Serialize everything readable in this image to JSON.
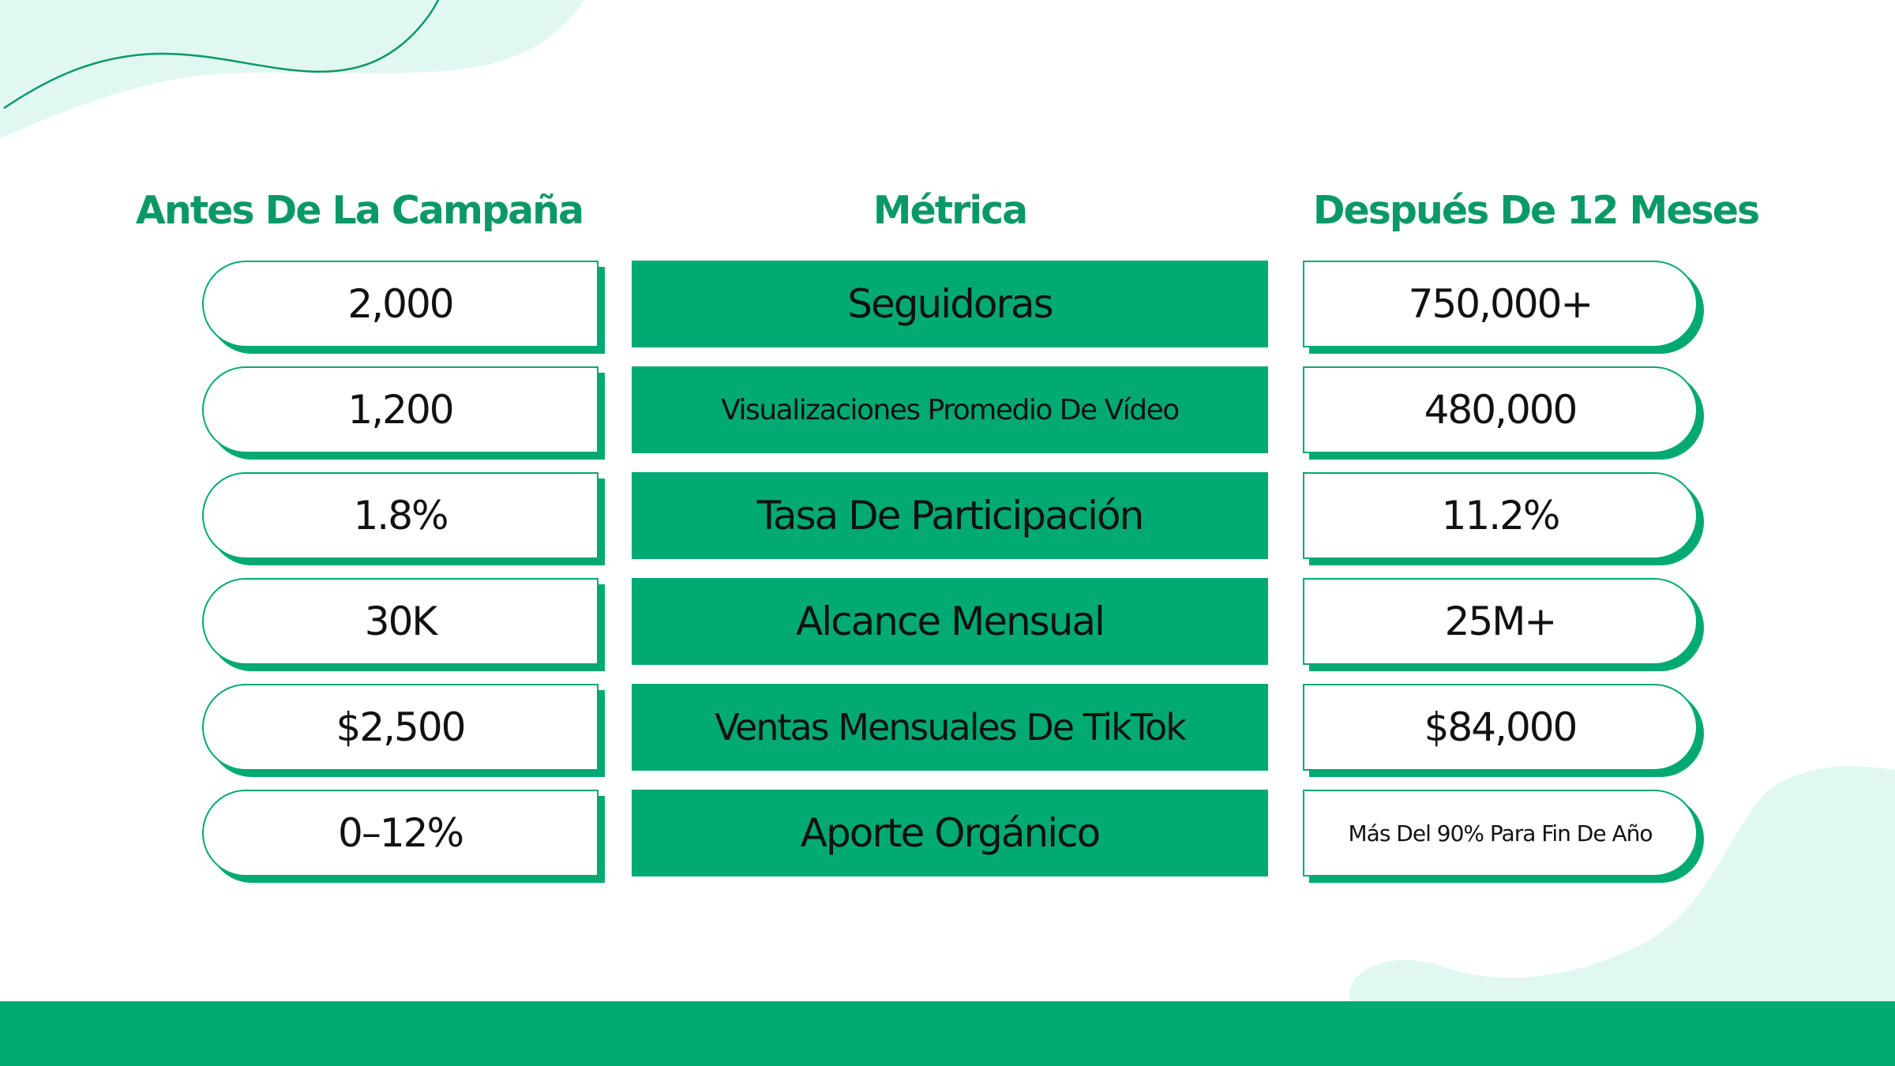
{
  "headers": {
    "before": "Antes De La Campaña",
    "metric": "Métrica",
    "after": "Después De 12 Meses"
  },
  "rows": [
    {
      "before": "2,000",
      "metric": "Seguidoras",
      "after": "750,000+"
    },
    {
      "before": "1,200",
      "metric": "Visualizaciones Promedio De Vídeo",
      "after": "480,000"
    },
    {
      "before": "1.8%",
      "metric": "Tasa De Participación",
      "after": "11.2%"
    },
    {
      "before": "30K",
      "metric": "Alcance Mensual",
      "after": "25M+"
    },
    {
      "before": "$2,500",
      "metric": "Ventas Mensuales De TikTok",
      "after": "$84,000"
    },
    {
      "before": "0–12%",
      "metric": "Aporte Orgánico",
      "after": "Más Del 90% Para Fin De Año"
    }
  ],
  "colors": {
    "accent": "#01aa72",
    "header_text": "#0a9966",
    "decor": "#e0f8f1"
  }
}
